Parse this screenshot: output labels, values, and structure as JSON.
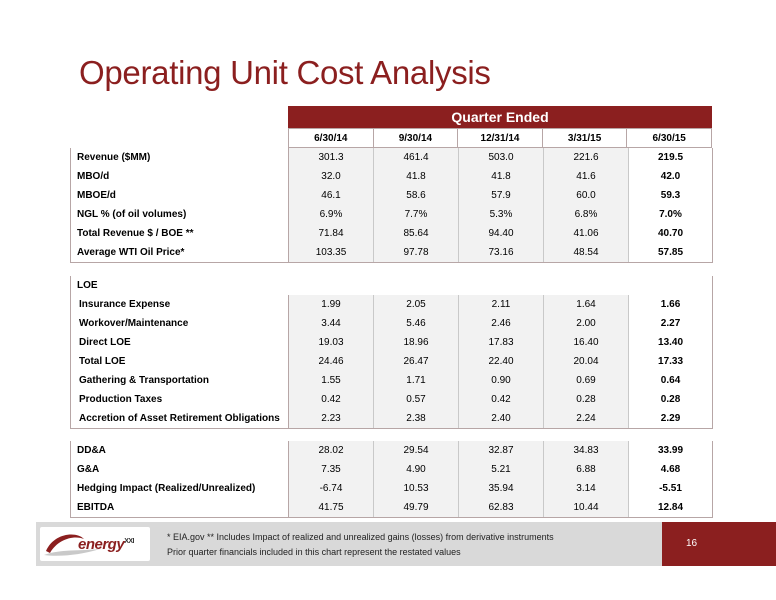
{
  "title": "Operating Unit Cost Analysis",
  "header": {
    "band": "Quarter Ended",
    "columns": [
      "6/30/14",
      "9/30/14",
      "12/31/14",
      "3/31/15",
      "6/30/15"
    ]
  },
  "table1": [
    {
      "label": "Revenue ($MM)",
      "values": [
        "301.3",
        "461.4",
        "503.0",
        "221.6",
        "219.5"
      ]
    },
    {
      "label": "MBO/d",
      "values": [
        "32.0",
        "41.8",
        "41.8",
        "41.6",
        "42.0"
      ]
    },
    {
      "label": "MBOE/d",
      "values": [
        "46.1",
        "58.6",
        "57.9",
        "60.0",
        "59.3"
      ]
    },
    {
      "label": "NGL % (of oil volumes)",
      "values": [
        "6.9%",
        "7.7%",
        "5.3%",
        "6.8%",
        "7.0%"
      ]
    },
    {
      "label": "Total Revenue $ / BOE **",
      "values": [
        "71.84",
        "85.64",
        "94.40",
        "41.06",
        "40.70"
      ]
    },
    {
      "label": "Average WTI Oil Price*",
      "values": [
        "103.35",
        "97.78",
        "73.16",
        "48.54",
        "57.85"
      ]
    }
  ],
  "table2": {
    "heading": "LOE",
    "rows": [
      {
        "label": "Insurance Expense",
        "values": [
          "1.99",
          "2.05",
          "2.11",
          "1.64",
          "1.66"
        ]
      },
      {
        "label": "Workover/Maintenance",
        "values": [
          "3.44",
          "5.46",
          "2.46",
          "2.00",
          "2.27"
        ]
      },
      {
        "label": "Direct LOE",
        "values": [
          "19.03",
          "18.96",
          "17.83",
          "16.40",
          "13.40"
        ]
      },
      {
        "label": "Total LOE",
        "values": [
          "24.46",
          "26.47",
          "22.40",
          "20.04",
          "17.33"
        ]
      },
      {
        "label": "Gathering & Transportation",
        "values": [
          "1.55",
          "1.71",
          "0.90",
          "0.69",
          "0.64"
        ]
      },
      {
        "label": "Production Taxes",
        "values": [
          "0.42",
          "0.57",
          "0.42",
          "0.28",
          "0.28"
        ]
      },
      {
        "label": "Accretion of Asset Retirement Obligations",
        "values": [
          "2.23",
          "2.38",
          "2.40",
          "2.24",
          "2.29"
        ]
      }
    ]
  },
  "table3": [
    {
      "label": "DD&A",
      "values": [
        "28.02",
        "29.54",
        "32.87",
        "34.83",
        "33.99"
      ]
    },
    {
      "label": "G&A",
      "values": [
        "7.35",
        "4.90",
        "5.21",
        "6.88",
        "4.68"
      ]
    },
    {
      "label": "Hedging Impact (Realized/Unrealized)",
      "values": [
        "-6.74",
        "10.53",
        "35.94",
        "3.14",
        "-5.51"
      ]
    },
    {
      "label": "EBITDA",
      "values": [
        "41.75",
        "49.79",
        "62.83",
        "10.44",
        "12.84"
      ]
    }
  ],
  "footer": {
    "note1": "*  EIA.gov   **  Includes Impact of realized and unrealized gains (losses) from derivative instruments",
    "note2": "Prior quarter financials included in this chart represent the restated values",
    "page_number": "16",
    "logo_text": "energy",
    "logo_suffix": "XXI"
  },
  "colors": {
    "brand": "#8b1f1f",
    "band_gray": "#d9d9d9"
  }
}
